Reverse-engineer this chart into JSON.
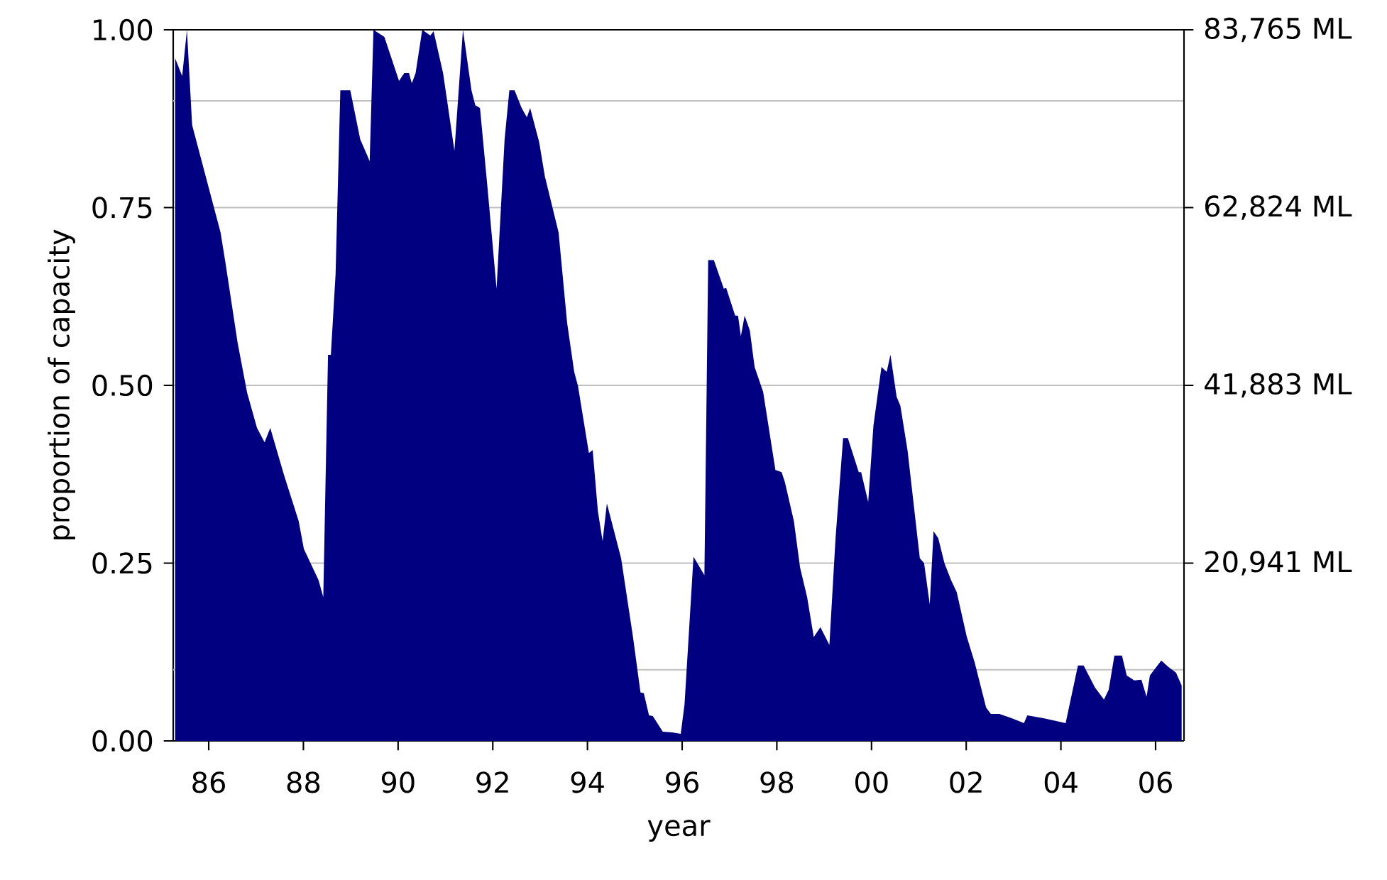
{
  "chart_data": {
    "type": "area",
    "xlabel": "year",
    "ylabel": "proportion of capacity",
    "xlim": [
      1985.25,
      2006.6
    ],
    "xticks": [
      {
        "value": 1986,
        "label": "86"
      },
      {
        "value": 1988,
        "label": "88"
      },
      {
        "value": 1990,
        "label": "90"
      },
      {
        "value": 1992,
        "label": "92"
      },
      {
        "value": 1994,
        "label": "94"
      },
      {
        "value": 1996,
        "label": "96"
      },
      {
        "value": 1998,
        "label": "98"
      },
      {
        "value": 2000,
        "label": "00"
      },
      {
        "value": 2002,
        "label": "02"
      },
      {
        "value": 2004,
        "label": "04"
      },
      {
        "value": 2006,
        "label": "06"
      }
    ],
    "ylim": [
      0,
      1
    ],
    "yticks": [
      {
        "value": 0,
        "label": "0.00"
      },
      {
        "value": 0.25,
        "label": "0.25"
      },
      {
        "value": 0.5,
        "label": "0.50"
      },
      {
        "value": 0.75,
        "label": "0.75"
      },
      {
        "value": 1,
        "label": "1.00"
      }
    ],
    "y2lim": [
      0,
      83765
    ],
    "y2ticks": [
      {
        "value": 20941,
        "label": "20,941 ML"
      },
      {
        "value": 41883,
        "label": "41,883 ML"
      },
      {
        "value": 62824,
        "label": "62,824 ML"
      },
      {
        "value": 83765,
        "label": "83,765 ML"
      }
    ],
    "grid": "y",
    "ref_lines": [
      {
        "axis": "y",
        "value": 0.1,
        "color": "#c0c0c0"
      },
      {
        "axis": "y",
        "value": 0.9,
        "color": "#c0c0c0"
      }
    ],
    "series": [
      {
        "color": "#000080",
        "x": [
          1985.29,
          1985.44,
          1985.54,
          1985.65,
          1986.25,
          1986.35,
          1986.61,
          1986.81,
          1987.02,
          1987.18,
          1987.3,
          1987.59,
          1987.9,
          1988.01,
          1988.32,
          1988.42,
          1988.52,
          1988.58,
          1988.68,
          1988.78,
          1988.99,
          1989.2,
          1989.35,
          1989.4,
          1989.48,
          1989.71,
          1990.02,
          1990.13,
          1990.23,
          1990.29,
          1990.37,
          1990.51,
          1990.68,
          1990.75,
          1990.95,
          1991.19,
          1991.37,
          1991.55,
          1991.63,
          1991.73,
          1991.89,
          1992.08,
          1992.25,
          1992.35,
          1992.46,
          1992.61,
          1992.72,
          1992.79,
          1992.98,
          1993.1,
          1993.39,
          1993.57,
          1993.72,
          1993.8,
          1994.03,
          1994.11,
          1994.22,
          1994.32,
          1994.41,
          1994.71,
          1994.96,
          1995.12,
          1995.19,
          1995.3,
          1995.38,
          1995.59,
          1995.79,
          1995.97,
          1996.05,
          1996.24,
          1996.47,
          1996.55,
          1996.67,
          1996.88,
          1996.93,
          1997.12,
          1997.18,
          1997.24,
          1997.32,
          1997.43,
          1997.53,
          1997.71,
          1997.97,
          1998.1,
          1998.17,
          1998.36,
          1998.49,
          1998.64,
          1998.78,
          1998.92,
          1999.11,
          1999.24,
          1999.4,
          1999.5,
          1999.73,
          1999.78,
          1999.93,
          2000.04,
          2000.21,
          2000.32,
          2000.4,
          2000.53,
          2000.61,
          2000.76,
          2001.02,
          2001.11,
          2001.23,
          2001.31,
          2001.41,
          2001.54,
          2001.68,
          2001.8,
          2002.01,
          2002.18,
          2002.42,
          2002.52,
          2002.7,
          2002.96,
          2003.22,
          2003.29,
          2003.63,
          2004.1,
          2004.36,
          2004.48,
          2004.72,
          2004.91,
          2005.01,
          2005.13,
          2005.29,
          2005.39,
          2005.55,
          2005.7,
          2005.81,
          2005.88,
          2006.12,
          2006.27,
          2006.43,
          2006.55
        ],
        "values": [
          0.96,
          0.935,
          1.0,
          0.866,
          0.715,
          0.674,
          0.56,
          0.49,
          0.44,
          0.42,
          0.44,
          0.374,
          0.309,
          0.27,
          0.226,
          0.202,
          0.543,
          0.543,
          0.657,
          0.915,
          0.915,
          0.846,
          0.823,
          0.815,
          1.0,
          0.99,
          0.928,
          0.939,
          0.939,
          0.925,
          0.939,
          1.0,
          0.992,
          0.998,
          0.939,
          0.83,
          1.0,
          0.915,
          0.894,
          0.89,
          0.777,
          0.636,
          0.846,
          0.915,
          0.915,
          0.89,
          0.877,
          0.89,
          0.842,
          0.794,
          0.715,
          0.588,
          0.519,
          0.499,
          0.405,
          0.409,
          0.323,
          0.281,
          0.334,
          0.257,
          0.147,
          0.068,
          0.067,
          0.036,
          0.035,
          0.013,
          0.012,
          0.01,
          0.051,
          0.259,
          0.233,
          0.676,
          0.676,
          0.636,
          0.637,
          0.598,
          0.598,
          0.569,
          0.598,
          0.577,
          0.526,
          0.491,
          0.381,
          0.378,
          0.364,
          0.309,
          0.244,
          0.202,
          0.146,
          0.16,
          0.135,
          0.285,
          0.426,
          0.426,
          0.378,
          0.378,
          0.336,
          0.443,
          0.526,
          0.519,
          0.543,
          0.484,
          0.471,
          0.409,
          0.257,
          0.25,
          0.192,
          0.295,
          0.285,
          0.25,
          0.226,
          0.209,
          0.147,
          0.11,
          0.047,
          0.038,
          0.038,
          0.032,
          0.025,
          0.036,
          0.032,
          0.025,
          0.106,
          0.106,
          0.075,
          0.058,
          0.072,
          0.12,
          0.12,
          0.092,
          0.085,
          0.086,
          0.062,
          0.092,
          0.113,
          0.104,
          0.096,
          0.078
        ]
      }
    ]
  }
}
